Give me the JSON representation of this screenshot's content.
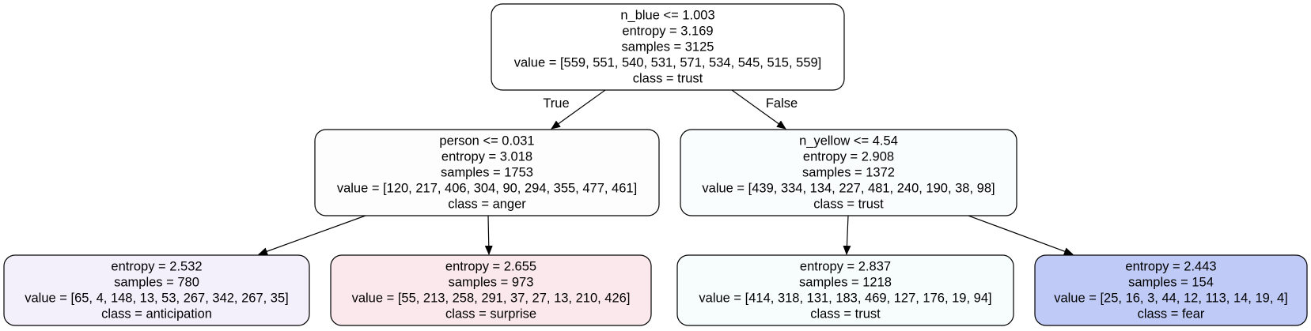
{
  "nodes": [
    {
      "id": "root",
      "lines": [
        "n_blue <= 1.003",
        "entropy = 3.169",
        "samples = 3125",
        "value = [559, 551, 540, 531, 571, 534, 545, 515, 559]",
        "class = trust"
      ],
      "fill": "#ffffff"
    },
    {
      "id": "left",
      "lines": [
        "person <= 0.031",
        "entropy = 3.018",
        "samples = 1753",
        "value = [120, 217, 406, 304, 90, 294, 355, 477, 461]",
        "class = anger"
      ],
      "fill": "#fdfdfd"
    },
    {
      "id": "right",
      "lines": [
        "n_yellow <= 4.54",
        "entropy = 2.908",
        "samples = 1372",
        "value = [439, 334, 134, 227, 481, 240, 190, 38, 98]",
        "class = trust"
      ],
      "fill": "#f9fdfd"
    },
    {
      "id": "ll",
      "lines": [
        "entropy = 2.532",
        "samples = 780",
        "value = [65, 4, 148, 13, 53, 267, 342, 267, 35]",
        "class = anticipation"
      ],
      "fill": "#f3effb"
    },
    {
      "id": "lr",
      "lines": [
        "entropy = 2.655",
        "samples = 973",
        "value = [55, 213, 258, 291, 37, 27, 13, 210, 426]",
        "class = surprise"
      ],
      "fill": "#fbe8ed"
    },
    {
      "id": "rl",
      "lines": [
        "entropy = 2.837",
        "samples = 1218",
        "value = [414, 318, 131, 183, 469, 127, 176, 19, 94]",
        "class = trust"
      ],
      "fill": "#f7fdfd"
    },
    {
      "id": "rr",
      "lines": [
        "entropy = 2.443",
        "samples = 154",
        "value = [25, 16, 3, 44, 12, 113, 14, 19, 4]",
        "class = fear"
      ],
      "fill": "#bfcbf6"
    }
  ],
  "edges": [
    {
      "from": "root",
      "to": "left",
      "label": "True"
    },
    {
      "from": "root",
      "to": "right",
      "label": "False"
    },
    {
      "from": "left",
      "to": "ll",
      "label": ""
    },
    {
      "from": "left",
      "to": "lr",
      "label": ""
    },
    {
      "from": "right",
      "to": "rl",
      "label": ""
    },
    {
      "from": "right",
      "to": "rr",
      "label": ""
    }
  ]
}
